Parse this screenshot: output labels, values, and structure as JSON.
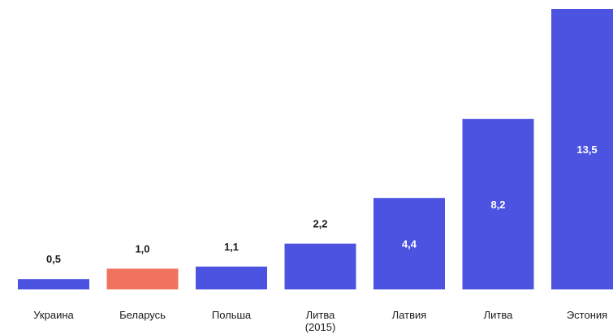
{
  "chart_data": {
    "type": "bar",
    "categories": [
      "Украина",
      "Беларусь",
      "Польша",
      "Литва\n(2015)",
      "Латвия",
      "Литва",
      "Эстония"
    ],
    "values": [
      0.5,
      1.0,
      1.1,
      2.2,
      4.4,
      8.2,
      13.5
    ],
    "value_labels": [
      "0,5",
      "1,0",
      "1,1",
      "2,2",
      "4,4",
      "8,2",
      "13,5"
    ],
    "highlight_index": 1,
    "colors": {
      "bar": "#4c53e0",
      "highlight": "#f0735f",
      "outside_label": "#1a1a1a",
      "inside_label": "#ffffff"
    },
    "ylim": [
      0,
      13.5
    ],
    "grid": false,
    "title": "",
    "xlabel": "",
    "ylabel": ""
  }
}
